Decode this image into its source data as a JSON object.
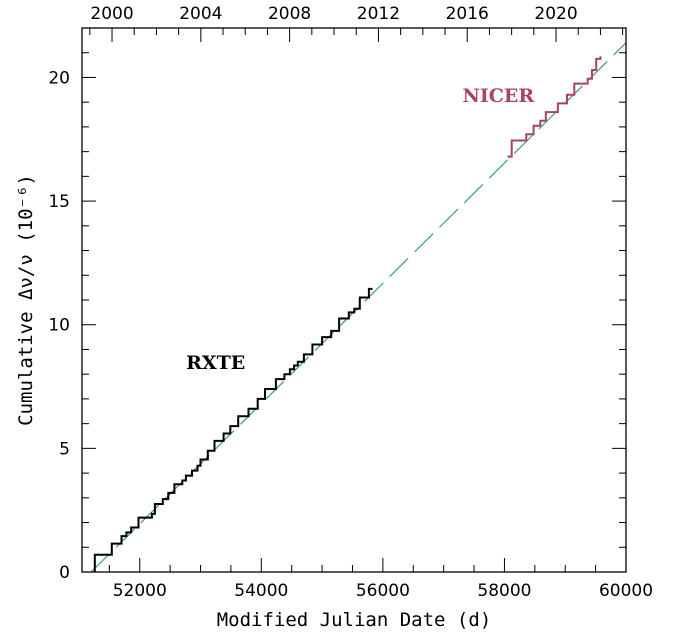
{
  "chart_data": {
    "type": "line",
    "xlabel": "Modified Julian Date (d)",
    "ylabel": "Cumulative Δν/ν (10⁻⁶)",
    "xlim": [
      51050,
      60000
    ],
    "ylim": [
      0,
      22
    ],
    "x_ticks": [
      52000,
      54000,
      56000,
      58000,
      60000
    ],
    "y_ticks": [
      0,
      5,
      10,
      15,
      20
    ],
    "top_axis": {
      "label_type": "year",
      "ticks": [
        {
          "label": "2000",
          "mjd": 51544
        },
        {
          "label": "2004",
          "mjd": 53005
        },
        {
          "label": "2008",
          "mjd": 54466
        },
        {
          "label": "2012",
          "mjd": 55927
        },
        {
          "label": "2016",
          "mjd": 57388
        },
        {
          "label": "2020",
          "mjd": 58849
        }
      ]
    },
    "grid": false,
    "series": [
      {
        "name": "RXTE",
        "color": "#000000",
        "style": "step",
        "points": [
          [
            51260,
            0.0
          ],
          [
            51260,
            0.7
          ],
          [
            51540,
            0.7
          ],
          [
            51540,
            1.15
          ],
          [
            51700,
            1.15
          ],
          [
            51700,
            1.45
          ],
          [
            51780,
            1.45
          ],
          [
            51780,
            1.6
          ],
          [
            51860,
            1.6
          ],
          [
            51860,
            1.8
          ],
          [
            51980,
            1.8
          ],
          [
            51980,
            2.2
          ],
          [
            52200,
            2.2
          ],
          [
            52200,
            2.35
          ],
          [
            52250,
            2.35
          ],
          [
            52250,
            2.75
          ],
          [
            52380,
            2.75
          ],
          [
            52380,
            2.95
          ],
          [
            52470,
            2.95
          ],
          [
            52470,
            3.2
          ],
          [
            52570,
            3.2
          ],
          [
            52570,
            3.55
          ],
          [
            52700,
            3.55
          ],
          [
            52700,
            3.7
          ],
          [
            52760,
            3.7
          ],
          [
            52760,
            3.9
          ],
          [
            52860,
            3.9
          ],
          [
            52860,
            4.1
          ],
          [
            52950,
            4.1
          ],
          [
            52950,
            4.3
          ],
          [
            53000,
            4.3
          ],
          [
            53000,
            4.55
          ],
          [
            53120,
            4.55
          ],
          [
            53120,
            4.9
          ],
          [
            53230,
            4.9
          ],
          [
            53230,
            5.3
          ],
          [
            53380,
            5.3
          ],
          [
            53380,
            5.6
          ],
          [
            53490,
            5.6
          ],
          [
            53490,
            5.9
          ],
          [
            53620,
            5.9
          ],
          [
            53620,
            6.3
          ],
          [
            53790,
            6.3
          ],
          [
            53790,
            6.6
          ],
          [
            53940,
            6.6
          ],
          [
            53940,
            7.0
          ],
          [
            54060,
            7.0
          ],
          [
            54060,
            7.4
          ],
          [
            54240,
            7.4
          ],
          [
            54240,
            7.8
          ],
          [
            54380,
            7.8
          ],
          [
            54380,
            8.0
          ],
          [
            54470,
            8.0
          ],
          [
            54470,
            8.2
          ],
          [
            54540,
            8.2
          ],
          [
            54540,
            8.35
          ],
          [
            54600,
            8.35
          ],
          [
            54600,
            8.5
          ],
          [
            54700,
            8.5
          ],
          [
            54700,
            8.8
          ],
          [
            54840,
            8.8
          ],
          [
            54840,
            9.2
          ],
          [
            55000,
            9.2
          ],
          [
            55000,
            9.5
          ],
          [
            55150,
            9.5
          ],
          [
            55150,
            9.75
          ],
          [
            55280,
            9.75
          ],
          [
            55280,
            10.25
          ],
          [
            55440,
            10.25
          ],
          [
            55440,
            10.5
          ],
          [
            55530,
            10.5
          ],
          [
            55530,
            10.65
          ],
          [
            55620,
            10.65
          ],
          [
            55620,
            11.1
          ],
          [
            55770,
            11.1
          ],
          [
            55770,
            11.45
          ],
          [
            55830,
            11.45
          ]
        ]
      },
      {
        "name": "NICER",
        "color": "#a8455e",
        "style": "step",
        "points": [
          [
            58050,
            16.8
          ],
          [
            58120,
            16.8
          ],
          [
            58120,
            17.45
          ],
          [
            58360,
            17.45
          ],
          [
            58360,
            17.7
          ],
          [
            58480,
            17.7
          ],
          [
            58480,
            18.05
          ],
          [
            58590,
            18.05
          ],
          [
            58590,
            18.25
          ],
          [
            58680,
            18.25
          ],
          [
            58680,
            18.6
          ],
          [
            58880,
            18.6
          ],
          [
            58880,
            18.95
          ],
          [
            59030,
            18.95
          ],
          [
            59030,
            19.3
          ],
          [
            59150,
            19.3
          ],
          [
            59150,
            19.75
          ],
          [
            59370,
            19.75
          ],
          [
            59370,
            19.95
          ],
          [
            59440,
            19.95
          ],
          [
            59440,
            20.3
          ],
          [
            59510,
            20.3
          ],
          [
            59510,
            20.75
          ],
          [
            59580,
            20.75
          ],
          [
            59580,
            20.85
          ]
        ]
      },
      {
        "name": "",
        "color": "#3f9a78",
        "style": "dashed",
        "points": [
          [
            51200,
            0.0
          ],
          [
            60000,
            21.4
          ]
        ]
      }
    ],
    "annotations": [
      {
        "text": "RXTE",
        "x": 53250,
        "y": 8.2,
        "color": "#000000"
      },
      {
        "text": "NICER",
        "x": 57900,
        "y": 19.0,
        "color": "#a8455e"
      }
    ]
  }
}
